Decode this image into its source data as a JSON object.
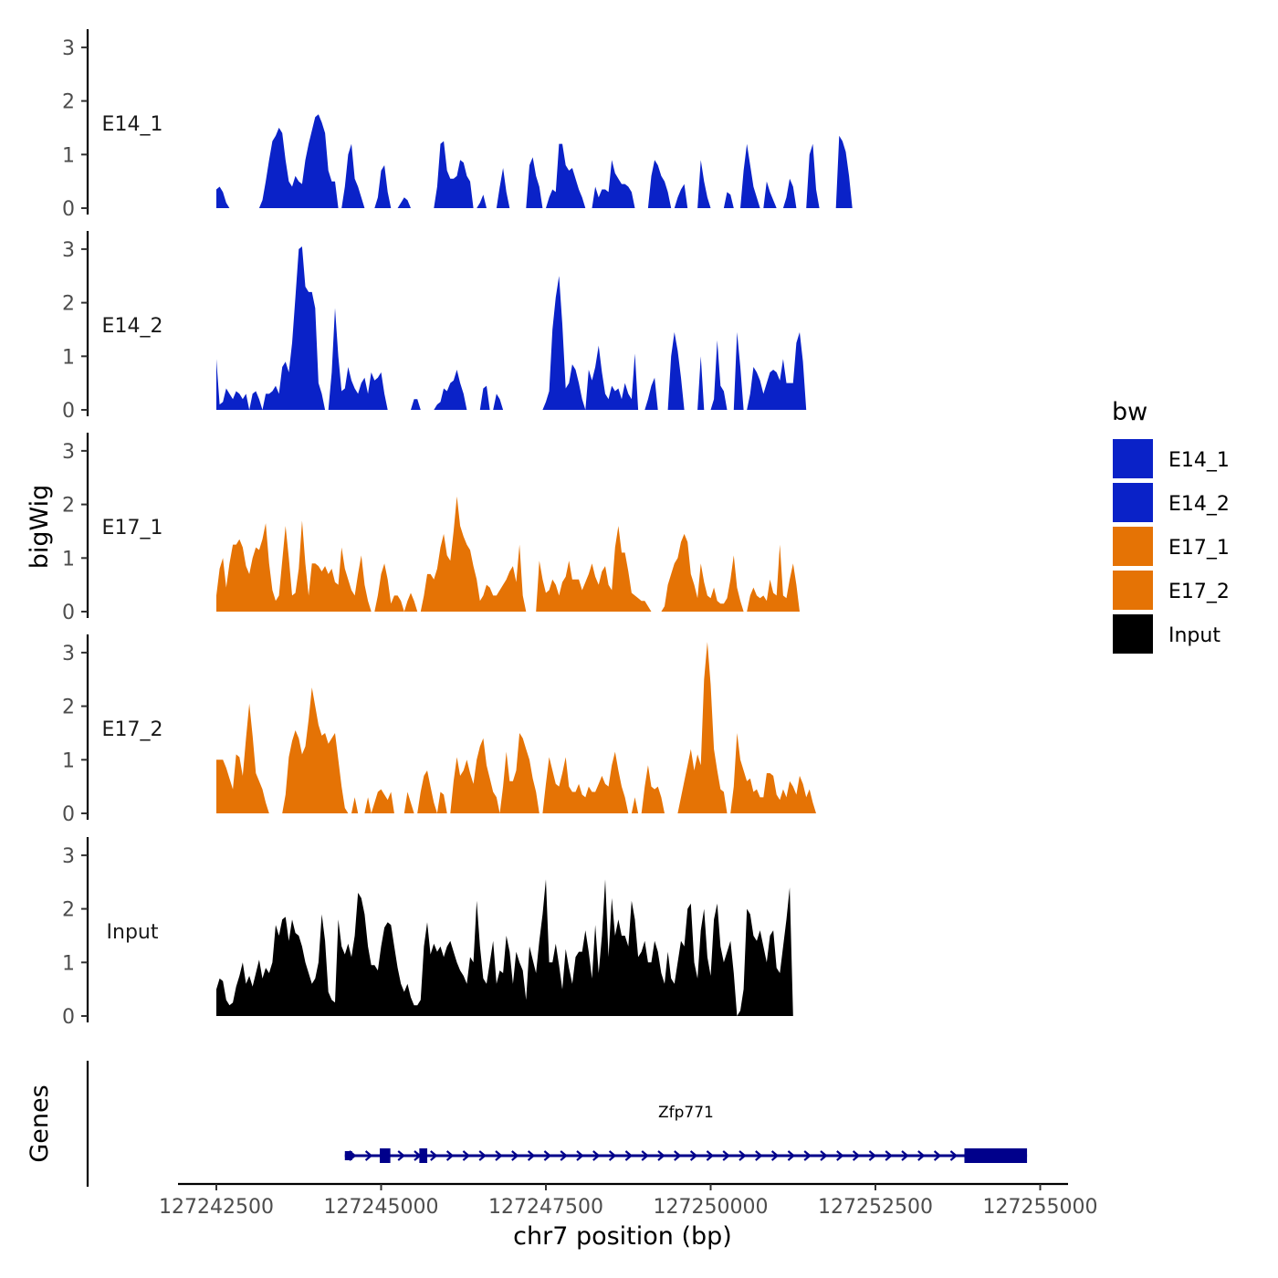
{
  "chart_data": {
    "type": "area",
    "title": "",
    "xlabel": "chr7 position (bp)",
    "ylabel": "bigWig",
    "genes_label": "Genes",
    "xlim": [
      127242400,
      127255000
    ],
    "x_ticks": [
      127242500,
      127245000,
      127247500,
      127250000,
      127252500,
      127255000
    ],
    "x_tick_labels": [
      "127242500",
      "127245000",
      "127247500",
      "127250000",
      "127252500",
      "127255000"
    ],
    "ylim": [
      0,
      3.3
    ],
    "y_ticks": [
      0,
      1,
      2,
      3
    ],
    "y_tick_labels": [
      "0",
      "1",
      "2",
      "3"
    ],
    "x_start": 127242500,
    "x_step": 50,
    "legend": {
      "title": "bw",
      "position": "right",
      "entries": [
        {
          "label": "E14_1",
          "color": "#0a22c8"
        },
        {
          "label": "E14_2",
          "color": "#0a22c8"
        },
        {
          "label": "E17_1",
          "color": "#e57305"
        },
        {
          "label": "E17_2",
          "color": "#e57305"
        },
        {
          "label": "Input",
          "color": "#000000"
        }
      ]
    },
    "series": [
      {
        "name": "E14_1",
        "color": "#0a22c8",
        "values": [
          0.35,
          0.4,
          0.3,
          0.1,
          0.0,
          0.0,
          0.0,
          0.0,
          0.0,
          0.0,
          0.0,
          0.0,
          0.0,
          0.0,
          0.15,
          0.5,
          0.9,
          1.25,
          1.35,
          1.5,
          1.4,
          0.9,
          0.5,
          0.4,
          0.6,
          0.5,
          0.45,
          0.9,
          1.2,
          1.45,
          1.7,
          1.75,
          1.6,
          1.4,
          0.7,
          0.5,
          0.5,
          0.0,
          0.0,
          0.4,
          1.0,
          1.2,
          0.55,
          0.4,
          0.2,
          0.0,
          0.0,
          0.0,
          0.0,
          0.2,
          0.7,
          0.8,
          0.3,
          0.0,
          0.0,
          0.0,
          0.1,
          0.2,
          0.15,
          0.0,
          0.0,
          0.0,
          0.0,
          0.0,
          0.0,
          0.0,
          0.0,
          0.4,
          1.2,
          1.25,
          0.7,
          0.55,
          0.55,
          0.6,
          0.9,
          0.85,
          0.6,
          0.5,
          0.0,
          0.0,
          0.1,
          0.25,
          0.0,
          0.0,
          0.0,
          0.0,
          0.4,
          0.75,
          0.3,
          0.0,
          0.0,
          0.0,
          0.0,
          0.0,
          0.0,
          0.8,
          0.95,
          0.6,
          0.4,
          0.0,
          0.0,
          0.2,
          0.35,
          0.3,
          1.2,
          1.2,
          0.8,
          0.7,
          0.75,
          0.55,
          0.35,
          0.2,
          0.0,
          0.0,
          0.0,
          0.4,
          0.2,
          0.35,
          0.35,
          0.3,
          0.9,
          0.65,
          0.55,
          0.45,
          0.45,
          0.4,
          0.3,
          0.0,
          0.0,
          0.0,
          0.0,
          0.0,
          0.6,
          0.9,
          0.8,
          0.6,
          0.5,
          0.3,
          0.0,
          0.0,
          0.2,
          0.35,
          0.45,
          0.0,
          0.0,
          0.0,
          0.0,
          0.9,
          0.5,
          0.2,
          0.0,
          0.0,
          0.0,
          0.0,
          0.0,
          0.3,
          0.25,
          0.0,
          0.0,
          0.0,
          0.7,
          1.2,
          0.8,
          0.4,
          0.2,
          0.0,
          0.0,
          0.5,
          0.3,
          0.15,
          0.0,
          0.0,
          0.0,
          0.2,
          0.55,
          0.4,
          0.0,
          0.0,
          0.0,
          0.0,
          1.0,
          1.2,
          0.35,
          0.0,
          0.0,
          0.0,
          0.0,
          0.0,
          0.0,
          1.35,
          1.25,
          1.05,
          0.6,
          0.0,
          0.0,
          0.0,
          0.0,
          0.0,
          0.0
        ]
      },
      {
        "name": "E14_2",
        "color": "#0a22c8",
        "values": [
          0.95,
          0.1,
          0.15,
          0.4,
          0.3,
          0.2,
          0.35,
          0.3,
          0.2,
          0.3,
          0.0,
          0.3,
          0.35,
          0.2,
          0.0,
          0.3,
          0.3,
          0.35,
          0.45,
          0.3,
          0.8,
          0.9,
          0.7,
          1.25,
          2.1,
          3.0,
          3.05,
          2.3,
          2.2,
          2.2,
          1.9,
          0.5,
          0.3,
          0.0,
          0.0,
          0.7,
          1.9,
          1.0,
          0.35,
          0.4,
          0.8,
          0.55,
          0.4,
          0.3,
          0.5,
          0.6,
          0.3,
          0.7,
          0.55,
          0.6,
          0.7,
          0.3,
          0.0,
          0.0,
          0.0,
          0.0,
          0.0,
          0.0,
          0.0,
          0.0,
          0.2,
          0.2,
          0.0,
          0.0,
          0.0,
          0.0,
          0.0,
          0.1,
          0.15,
          0.4,
          0.35,
          0.5,
          0.55,
          0.75,
          0.5,
          0.3,
          0.0,
          0.0,
          0.0,
          0.0,
          0.0,
          0.4,
          0.45,
          0.0,
          0.0,
          0.3,
          0.2,
          0.0,
          0.0,
          0.0,
          0.0,
          0.0,
          0.0,
          0.0,
          0.0,
          0.0,
          0.0,
          0.0,
          0.0,
          0.0,
          0.15,
          0.35,
          1.5,
          2.1,
          2.5,
          1.6,
          0.4,
          0.5,
          0.85,
          0.75,
          0.5,
          0.2,
          0.0,
          0.75,
          0.55,
          0.8,
          1.2,
          0.7,
          0.3,
          0.2,
          0.45,
          0.35,
          0.4,
          0.2,
          0.5,
          0.3,
          0.2,
          1.05,
          0.0,
          0.0,
          0.0,
          0.2,
          0.45,
          0.6,
          0.0,
          0.0,
          0.0,
          0.0,
          1.0,
          1.45,
          1.1,
          0.6,
          0.0,
          0.0,
          0.0,
          0.0,
          0.0,
          1.0,
          0.0,
          0.0,
          0.0,
          0.2,
          1.3,
          0.45,
          0.35,
          0.0,
          0.0,
          0.0,
          1.45,
          0.8,
          0.0,
          0.0,
          0.3,
          0.8,
          0.7,
          0.55,
          0.3,
          0.5,
          0.7,
          0.75,
          0.7,
          0.55,
          0.95,
          0.5,
          0.5,
          0.5,
          1.25,
          1.45,
          0.9,
          0.0,
          0.0,
          0.0,
          0.0,
          0.0,
          0.0,
          0.0,
          0.0,
          0.0,
          0.0,
          0.0,
          0.0,
          0.0,
          0.0
        ]
      },
      {
        "name": "E17_1",
        "color": "#e57305",
        "values": [
          0.3,
          0.8,
          1.0,
          0.45,
          0.9,
          1.25,
          1.25,
          1.35,
          1.2,
          0.85,
          0.7,
          1.0,
          1.2,
          1.15,
          1.35,
          1.65,
          0.9,
          0.4,
          0.2,
          0.3,
          0.95,
          1.6,
          1.0,
          0.3,
          0.35,
          0.8,
          1.7,
          0.9,
          0.3,
          0.9,
          0.9,
          0.85,
          0.75,
          0.85,
          0.7,
          0.8,
          0.55,
          0.5,
          1.2,
          0.8,
          0.6,
          0.4,
          0.3,
          0.7,
          1.05,
          0.5,
          0.2,
          0.0,
          0.0,
          0.3,
          0.7,
          0.9,
          0.6,
          0.15,
          0.3,
          0.3,
          0.2,
          0.0,
          0.2,
          0.35,
          0.2,
          0.0,
          0.0,
          0.3,
          0.7,
          0.7,
          0.6,
          0.8,
          1.2,
          1.45,
          1.05,
          0.95,
          1.5,
          2.15,
          1.6,
          1.4,
          1.25,
          1.15,
          0.85,
          0.6,
          0.2,
          0.3,
          0.5,
          0.45,
          0.3,
          0.3,
          0.4,
          0.5,
          0.6,
          0.75,
          0.85,
          0.55,
          1.25,
          0.3,
          0.0,
          0.0,
          0.0,
          0.0,
          0.95,
          0.6,
          0.35,
          0.4,
          0.6,
          0.5,
          0.3,
          0.55,
          0.65,
          0.95,
          0.6,
          0.6,
          0.6,
          0.4,
          0.55,
          0.7,
          0.9,
          0.65,
          0.5,
          0.75,
          0.85,
          0.5,
          0.4,
          1.2,
          1.6,
          1.1,
          1.1,
          0.75,
          0.35,
          0.3,
          0.25,
          0.2,
          0.2,
          0.1,
          0.0,
          0.0,
          0.0,
          0.0,
          0.1,
          0.5,
          0.7,
          0.9,
          1.0,
          1.3,
          1.45,
          1.3,
          0.7,
          0.5,
          0.25,
          0.9,
          0.55,
          0.3,
          0.25,
          0.45,
          0.2,
          0.15,
          0.15,
          0.25,
          0.6,
          1.05,
          0.45,
          0.2,
          0.0,
          0.0,
          0.3,
          0.45,
          0.3,
          0.25,
          0.3,
          0.2,
          0.6,
          0.35,
          0.3,
          1.25,
          0.3,
          0.25,
          0.6,
          0.9,
          0.5,
          0.0,
          0.0,
          0.0,
          0.0,
          0.0
        ]
      },
      {
        "name": "E17_2",
        "color": "#e57305",
        "values": [
          1.0,
          1.0,
          1.0,
          0.85,
          0.65,
          0.45,
          1.1,
          1.05,
          0.7,
          1.4,
          2.05,
          1.45,
          0.75,
          0.6,
          0.45,
          0.2,
          0.0,
          0.0,
          0.0,
          0.0,
          0.0,
          0.35,
          1.05,
          1.35,
          1.55,
          1.4,
          1.1,
          1.25,
          1.75,
          2.35,
          2.0,
          1.65,
          1.45,
          1.5,
          1.3,
          1.4,
          1.5,
          1.0,
          0.5,
          0.1,
          0.0,
          0.0,
          0.3,
          0.0,
          0.0,
          0.0,
          0.3,
          0.0,
          0.2,
          0.4,
          0.45,
          0.35,
          0.25,
          0.4,
          0.0,
          0.0,
          0.0,
          0.0,
          0.4,
          0.2,
          0.0,
          0.0,
          0.4,
          0.7,
          0.8,
          0.5,
          0.2,
          0.0,
          0.4,
          0.35,
          0.0,
          0.0,
          0.6,
          1.05,
          0.7,
          0.8,
          1.0,
          0.75,
          0.55,
          1.0,
          1.25,
          1.4,
          0.9,
          0.65,
          0.4,
          0.3,
          0.0,
          0.5,
          1.15,
          0.6,
          0.6,
          0.8,
          1.5,
          1.4,
          1.2,
          1.0,
          0.65,
          0.4,
          0.0,
          0.0,
          0.55,
          1.05,
          0.8,
          0.55,
          0.5,
          0.75,
          1.05,
          0.5,
          0.4,
          0.4,
          0.55,
          0.35,
          0.3,
          0.5,
          0.4,
          0.4,
          0.55,
          0.7,
          0.55,
          0.5,
          0.9,
          1.15,
          0.8,
          0.5,
          0.3,
          0.0,
          0.0,
          0.3,
          0.0,
          0.0,
          0.5,
          0.9,
          0.5,
          0.45,
          0.5,
          0.3,
          0.0,
          0.0,
          0.0,
          0.0,
          0.0,
          0.3,
          0.6,
          0.9,
          1.2,
          0.8,
          1.1,
          0.9,
          2.5,
          3.2,
          2.4,
          1.2,
          0.8,
          0.45,
          0.4,
          0.0,
          0.0,
          0.5,
          1.5,
          1.0,
          0.8,
          0.6,
          0.65,
          0.4,
          0.45,
          0.3,
          0.3,
          0.75,
          0.75,
          0.7,
          0.35,
          0.25,
          0.45,
          0.3,
          0.6,
          0.5,
          0.35,
          0.7,
          0.55,
          0.3,
          0.45,
          0.2,
          0.0,
          0.0,
          0.0,
          0.0,
          0.0,
          0.0,
          0.0,
          0.0,
          0.0
        ]
      },
      {
        "name": "Input",
        "color": "#000000",
        "values": [
          0.5,
          0.7,
          0.65,
          0.3,
          0.2,
          0.25,
          0.55,
          0.75,
          1.0,
          0.6,
          0.75,
          0.55,
          0.8,
          1.05,
          0.7,
          0.9,
          0.8,
          1.0,
          1.7,
          1.5,
          1.8,
          1.85,
          1.4,
          1.8,
          1.55,
          1.5,
          1.3,
          1.0,
          0.8,
          0.6,
          0.7,
          1.0,
          1.9,
          1.4,
          0.45,
          0.3,
          0.25,
          1.8,
          1.3,
          1.15,
          1.35,
          1.1,
          1.5,
          2.3,
          2.2,
          1.9,
          1.3,
          0.95,
          0.95,
          0.85,
          1.3,
          1.65,
          1.75,
          1.7,
          1.3,
          0.9,
          0.6,
          0.45,
          0.6,
          0.35,
          0.2,
          0.2,
          0.3,
          1.3,
          1.75,
          1.15,
          1.35,
          1.2,
          1.3,
          1.1,
          1.3,
          1.4,
          1.2,
          1.0,
          0.85,
          0.75,
          0.6,
          1.1,
          1.0,
          2.15,
          1.3,
          0.7,
          0.6,
          1.0,
          1.4,
          0.6,
          0.85,
          0.8,
          1.5,
          1.2,
          0.6,
          1.2,
          1.0,
          0.85,
          0.3,
          1.3,
          1.05,
          0.8,
          1.4,
          1.9,
          2.55,
          1.0,
          1.0,
          1.35,
          0.95,
          0.5,
          1.25,
          0.9,
          0.6,
          1.1,
          1.2,
          1.2,
          1.6,
          1.2,
          0.7,
          1.7,
          0.8,
          1.5,
          2.55,
          1.1,
          2.2,
          1.5,
          1.8,
          1.5,
          1.5,
          1.3,
          2.15,
          1.8,
          1.1,
          1.2,
          1.4,
          1.0,
          1.0,
          1.4,
          1.2,
          0.8,
          0.6,
          1.2,
          0.7,
          0.6,
          1.0,
          1.4,
          1.3,
          2.0,
          2.1,
          1.0,
          0.7,
          1.6,
          2.0,
          1.1,
          0.75,
          1.8,
          2.1,
          1.3,
          1.0,
          1.2,
          1.4,
          0.8,
          0.0,
          0.1,
          0.5,
          2.0,
          1.9,
          1.5,
          1.4,
          1.6,
          1.3,
          1.0,
          1.5,
          1.6,
          0.9,
          0.8,
          1.3,
          1.8,
          2.4,
          0.0,
          0.0,
          0.0,
          0.0,
          0.0,
          0.0,
          0.0,
          0.0,
          0.0,
          0.0,
          0.0,
          0.0
        ]
      }
    ],
    "genes": [
      {
        "name": "Zfp771",
        "start": 127244450,
        "end": 127254800,
        "strand": "+",
        "color": "#00008b",
        "exons": [
          {
            "start": 127244450,
            "end": 127244560,
            "type": "utr"
          },
          {
            "start": 127244980,
            "end": 127245140,
            "type": "cds"
          },
          {
            "start": 127245580,
            "end": 127245700,
            "type": "cds"
          },
          {
            "start": 127253850,
            "end": 127254800,
            "type": "cds"
          }
        ]
      }
    ]
  }
}
